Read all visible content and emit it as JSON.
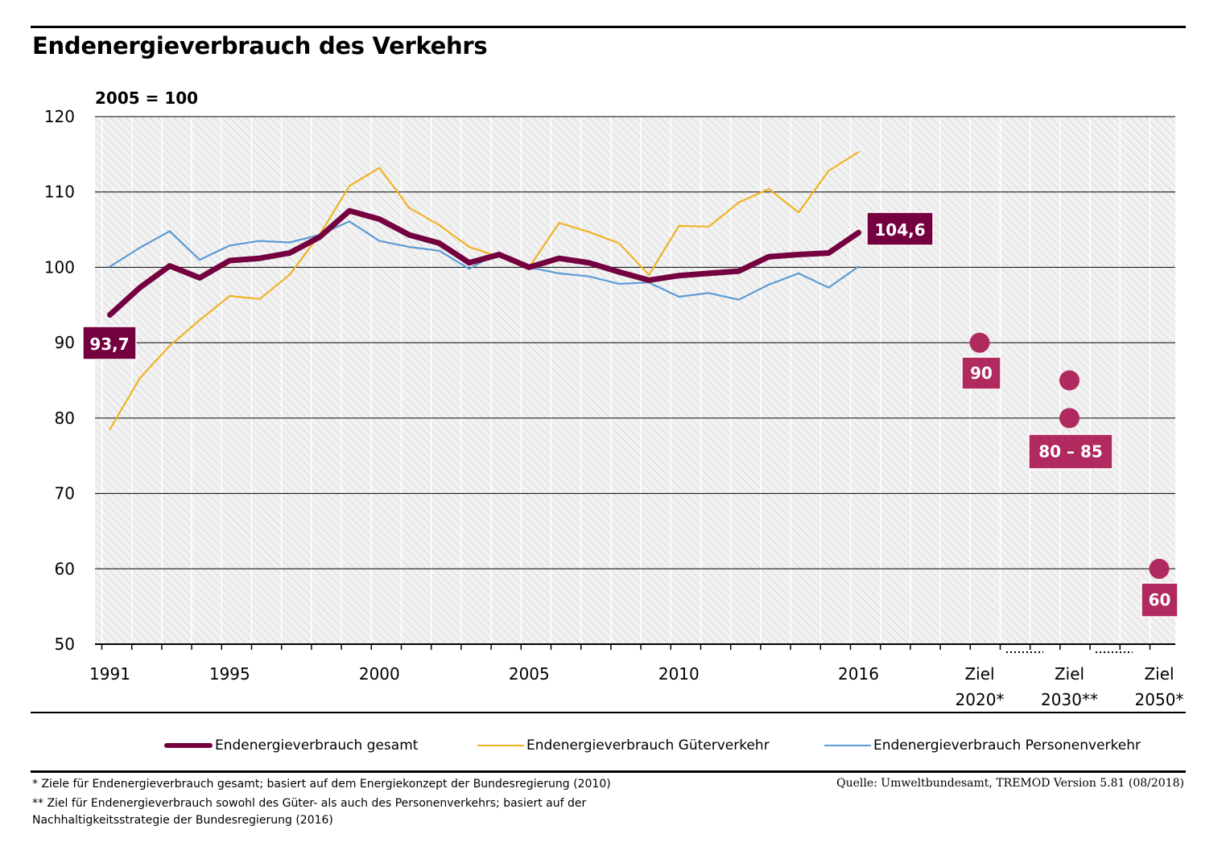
{
  "title": "Endenergieverbrauch des Verkehrs",
  "chart_data": {
    "type": "line",
    "unit_label": "2005 = 100",
    "ylim": [
      50,
      120
    ],
    "yticks": [
      50,
      60,
      70,
      80,
      90,
      100,
      110,
      120
    ],
    "grid": true,
    "x": [
      1991,
      1992,
      1993,
      1994,
      1995,
      1996,
      1997,
      1998,
      1999,
      2000,
      2001,
      2002,
      2003,
      2004,
      2005,
      2006,
      2007,
      2008,
      2009,
      2010,
      2011,
      2012,
      2013,
      2014,
      2015,
      2016
    ],
    "xtick_labels": [
      {
        "year": 1991,
        "label": "1991"
      },
      {
        "year": 1995,
        "label": "1995"
      },
      {
        "year": 2000,
        "label": "2000"
      },
      {
        "year": 2005,
        "label": "2005"
      },
      {
        "year": 2010,
        "label": "2010"
      },
      {
        "year": 2016,
        "label": "2016"
      }
    ],
    "series": [
      {
        "name": "Endenergieverbrauch gesamt",
        "color": "#74003f",
        "values": [
          93.7,
          97.3,
          100.2,
          98.6,
          100.9,
          101.2,
          101.9,
          104.0,
          107.5,
          106.4,
          104.3,
          103.2,
          100.6,
          101.7,
          100.0,
          101.2,
          100.6,
          99.4,
          98.3,
          98.9,
          99.2,
          99.5,
          101.4,
          101.7,
          101.9,
          104.6
        ]
      },
      {
        "name": "Endenergieverbrauch Güterverkehr",
        "color": "#f0b323",
        "values": [
          78.5,
          85.3,
          89.6,
          93.0,
          96.2,
          95.8,
          99.0,
          104.3,
          110.8,
          113.2,
          107.9,
          105.6,
          102.7,
          101.4,
          100.0,
          105.9,
          104.7,
          103.2,
          99.0,
          105.5,
          105.4,
          108.6,
          110.4,
          107.3,
          112.8,
          115.3
        ]
      },
      {
        "name": "Endenergieverbrauch Personenverkehr",
        "color": "#5b9bd5",
        "values": [
          100.1,
          102.6,
          104.8,
          101.0,
          102.9,
          103.5,
          103.3,
          104.3,
          106.1,
          103.5,
          102.7,
          102.2,
          99.8,
          102.0,
          100.0,
          99.2,
          98.8,
          97.8,
          98.0,
          96.1,
          96.6,
          95.7,
          97.7,
          99.2,
          97.3,
          100.1
        ]
      }
    ],
    "data_labels": [
      {
        "series": "Endenergieverbrauch gesamt",
        "year": 1991,
        "text": "93,7"
      },
      {
        "series": "Endenergieverbrauch gesamt",
        "year": 2016,
        "text": "104,6"
      }
    ],
    "targets": {
      "color": "#b02a5f",
      "groups": [
        {
          "label_line1": "Ziel",
          "label_line2": "2020*",
          "values": [
            90
          ],
          "value_label": "90"
        },
        {
          "label_line1": "Ziel",
          "label_line2": "2030**",
          "values": [
            85,
            80
          ],
          "value_label": "80 – 85"
        },
        {
          "label_line1": "Ziel",
          "label_line2": "2050*",
          "values": [
            60
          ],
          "value_label": "60"
        }
      ]
    }
  },
  "footnotes": [
    "* Ziele für Endenergieverbrauch gesamt; basiert auf dem Energiekonzept der Bundesregierung (2010)",
    "** Ziel für Endenergieverbrauch sowohl des Güter- als auch des Personenverkehrs; basiert auf der",
    "Nachhaltigkeitsstrategie der Bundesregierung (2016)"
  ],
  "source": "Quelle: Umweltbundesamt, TREMOD Version 5.81 (08/2018)"
}
